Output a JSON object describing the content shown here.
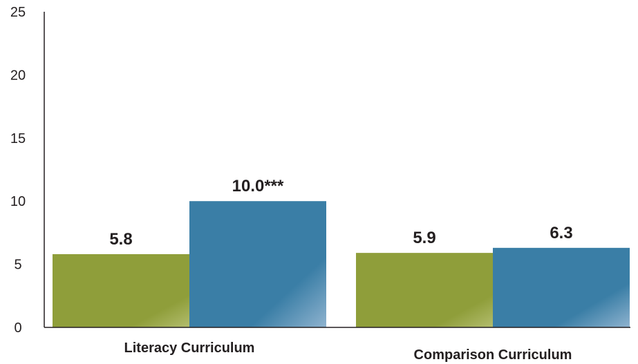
{
  "chart_data": {
    "type": "bar",
    "title": "",
    "xlabel": "",
    "ylabel": "",
    "ylim": [
      0,
      25
    ],
    "yticks": [
      "0",
      "5",
      "10",
      "15",
      "20",
      "25"
    ],
    "categories": [
      "Literacy Curriculum",
      "Comparison Curriculum"
    ],
    "series": [
      {
        "color": "#8f9e3a",
        "values": [
          5.8,
          5.9
        ],
        "labels": [
          "5.8",
          "5.9"
        ]
      },
      {
        "color": "#3a7ea6",
        "values": [
          10.0,
          6.3
        ],
        "labels": [
          "10.0***",
          "6.3"
        ]
      }
    ],
    "grid": false,
    "legend": "none"
  }
}
